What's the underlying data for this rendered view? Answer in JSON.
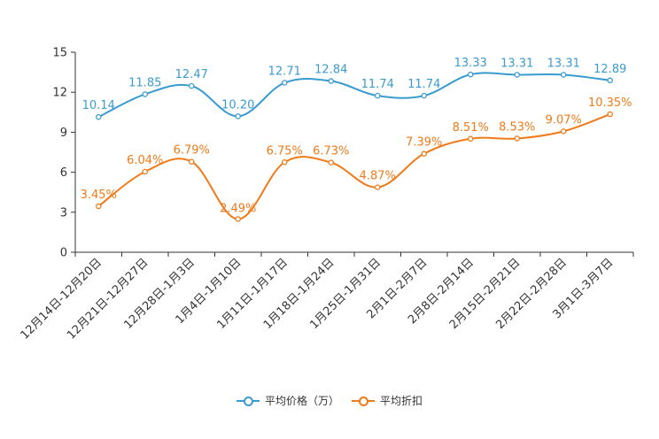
{
  "chart_data": {
    "type": "line",
    "categories": [
      "12月14日-12月20日",
      "12月21日-12月27日",
      "12月28日-1月3日",
      "1月4日-1月10日",
      "1月11日-1月17日",
      "1月18日-1月24日",
      "1月25日-1月31日",
      "2月1日-2月7日",
      "2月8日-2月14日",
      "2月15日-2月21日",
      "2月22日-2月28日",
      "3月1日-3月7日"
    ],
    "ylim": [
      0,
      15
    ],
    "yticks": [
      "0",
      "3",
      "6",
      "9",
      "12",
      "15"
    ],
    "series": [
      {
        "name": "平均价格（万）",
        "color": "#3a9bd0",
        "values": [
          10.14,
          11.85,
          12.47,
          10.2,
          12.71,
          12.84,
          11.74,
          11.74,
          13.33,
          13.31,
          13.31,
          12.89
        ],
        "labels": [
          "10.14",
          "11.85",
          "12.47",
          "10.20",
          "12.71",
          "12.84",
          "11.74",
          "11.74",
          "13.33",
          "13.31",
          "13.31",
          "12.89"
        ]
      },
      {
        "name": "平均折扣",
        "color": "#f07a18",
        "values": [
          3.45,
          6.04,
          6.79,
          2.49,
          6.75,
          6.73,
          4.87,
          7.39,
          8.51,
          8.53,
          9.07,
          10.35
        ],
        "labels": [
          "3.45%",
          "6.04%",
          "6.79%",
          "2.49%",
          "6.75%",
          "6.73%",
          "4.87%",
          "7.39%",
          "8.51%",
          "8.53%",
          "9.07%",
          "10.35%"
        ]
      }
    ],
    "legend": [
      "平均价格（万）",
      "平均折扣"
    ]
  }
}
